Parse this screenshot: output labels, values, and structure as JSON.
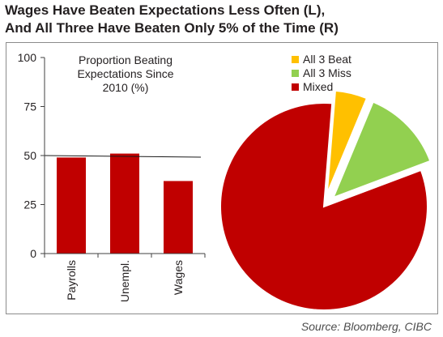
{
  "title_line1": "Wages Have Beaten Expectations Less Often (L),",
  "title_line2": "And All Three Have Beaten Only 5% of the Time (R)",
  "source": "Source: Bloomberg, CIBC",
  "chart_data": [
    {
      "type": "bar",
      "title_lines": [
        "Proportion Beating",
        "Expectations Since",
        "2010 (%)"
      ],
      "categories": [
        "Payrolls",
        "Unempl.",
        "Wages"
      ],
      "values": [
        49,
        51,
        37
      ],
      "ylim": [
        0,
        100
      ],
      "yticks": [
        0,
        25,
        50,
        75,
        100
      ],
      "reference_line": 50,
      "bar_color": "#c00000",
      "grid": false
    },
    {
      "type": "pie",
      "labels": [
        "All 3 Beat",
        "All 3 Miss",
        "Mixed"
      ],
      "values": [
        5,
        13,
        82
      ],
      "colors": [
        "#ffc000",
        "#92d050",
        "#c00000"
      ],
      "exploded": [
        "All 3 Beat",
        "All 3 Miss"
      ],
      "legend": "top-right"
    }
  ]
}
